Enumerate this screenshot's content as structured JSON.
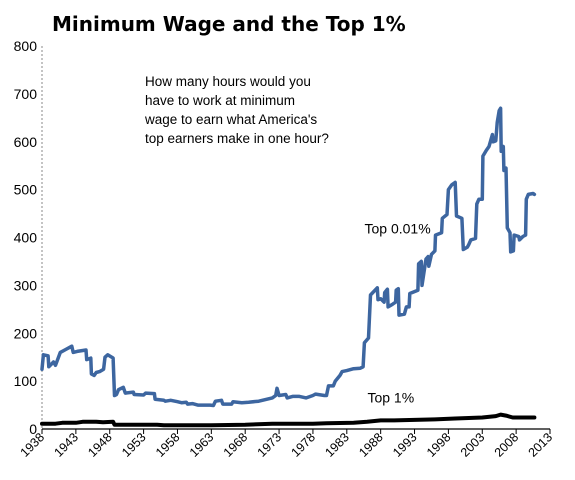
{
  "chart_data": {
    "type": "line",
    "title": "Minimum Wage and the Top 1%",
    "annotation": "How many hours would you have to work at minimum wage to earn what America's top earners make in one hour?",
    "annotation_lines": [
      "How many hours would you",
      "have to work at minimum",
      "wage to earn what America's",
      "top earners make in one hour?"
    ],
    "xlabel": "",
    "ylabel": "",
    "xlim": [
      1938,
      2013
    ],
    "ylim": [
      0,
      800
    ],
    "x_ticks": [
      1938,
      1943,
      1948,
      1953,
      1958,
      1963,
      1968,
      1973,
      1978,
      1983,
      1988,
      1993,
      1998,
      2003,
      2008,
      2013
    ],
    "y_ticks": [
      0,
      100,
      200,
      300,
      400,
      500,
      600,
      700,
      800
    ],
    "grid": false,
    "colors": {
      "top001": "#3d66a0",
      "top1": "#000000"
    },
    "series": [
      {
        "name": "Top 0.01%",
        "color": "#3d66a0",
        "points": [
          [
            1938,
            125
          ],
          [
            1938.2,
            155
          ],
          [
            1938.9,
            153
          ],
          [
            1939,
            130
          ],
          [
            1939.7,
            140
          ],
          [
            1940,
            133
          ],
          [
            1940.7,
            160
          ],
          [
            1941.5,
            166
          ],
          [
            1942.4,
            173
          ],
          [
            1942.6,
            160
          ],
          [
            1943.2,
            162
          ],
          [
            1944.5,
            165
          ],
          [
            1944.6,
            145
          ],
          [
            1945.2,
            148
          ],
          [
            1945.3,
            115
          ],
          [
            1945.7,
            112
          ],
          [
            1946,
            118
          ],
          [
            1946.5,
            120
          ],
          [
            1947.1,
            125
          ],
          [
            1947.3,
            150
          ],
          [
            1947.7,
            155
          ],
          [
            1948.3,
            150
          ],
          [
            1948.5,
            148
          ],
          [
            1948.7,
            70
          ],
          [
            1949,
            72
          ],
          [
            1949.3,
            82
          ],
          [
            1950,
            87
          ],
          [
            1950.3,
            75
          ],
          [
            1951.5,
            77
          ],
          [
            1951.6,
            72
          ],
          [
            1953,
            71
          ],
          [
            1953.3,
            75
          ],
          [
            1954.6,
            74
          ],
          [
            1954.7,
            62
          ],
          [
            1956,
            60
          ],
          [
            1956.2,
            58
          ],
          [
            1957,
            60
          ],
          [
            1958,
            57
          ],
          [
            1958.6,
            55
          ],
          [
            1959.3,
            56
          ],
          [
            1959.5,
            52
          ],
          [
            1960.2,
            53
          ],
          [
            1961,
            50
          ],
          [
            1962.8,
            50
          ],
          [
            1963.3,
            49
          ],
          [
            1963.6,
            58
          ],
          [
            1964.5,
            60
          ],
          [
            1964.7,
            52
          ],
          [
            1966,
            52
          ],
          [
            1966.2,
            57
          ],
          [
            1967.5,
            55
          ],
          [
            1968.5,
            56
          ],
          [
            1970,
            58
          ],
          [
            1972,
            65
          ],
          [
            1972.5,
            70
          ],
          [
            1972.7,
            85
          ],
          [
            1973,
            70
          ],
          [
            1974,
            72
          ],
          [
            1974.2,
            65
          ],
          [
            1975,
            68
          ],
          [
            1976,
            68
          ],
          [
            1977,
            65
          ],
          [
            1978,
            70
          ],
          [
            1978.4,
            73
          ],
          [
            1979.7,
            70
          ],
          [
            1980,
            70
          ],
          [
            1980.3,
            90
          ],
          [
            1981,
            90
          ],
          [
            1981.3,
            100
          ],
          [
            1982,
            112
          ],
          [
            1982.3,
            120
          ],
          [
            1983,
            122
          ],
          [
            1984,
            126
          ],
          [
            1985,
            127
          ],
          [
            1985.4,
            130
          ],
          [
            1985.6,
            180
          ],
          [
            1986.2,
            190
          ],
          [
            1986.5,
            280
          ],
          [
            1987.5,
            295
          ],
          [
            1987.6,
            270
          ],
          [
            1988,
            272
          ],
          [
            1988.5,
            265
          ],
          [
            1988.6,
            285
          ],
          [
            1989,
            292
          ],
          [
            1989.1,
            255
          ],
          [
            1989.7,
            260
          ],
          [
            1990.2,
            265
          ],
          [
            1990.3,
            290
          ],
          [
            1990.6,
            293
          ],
          [
            1990.7,
            238
          ],
          [
            1991.5,
            240
          ],
          [
            1991.8,
            255
          ],
          [
            1992.2,
            255
          ],
          [
            1992.3,
            283
          ],
          [
            1993.5,
            290
          ],
          [
            1993.6,
            345
          ],
          [
            1994,
            350
          ],
          [
            1994.1,
            300
          ],
          [
            1994.7,
            355
          ],
          [
            1995,
            360
          ],
          [
            1995.1,
            340
          ],
          [
            1995.5,
            365
          ],
          [
            1996,
            372
          ],
          [
            1996.1,
            405
          ],
          [
            1997,
            410
          ],
          [
            1997.1,
            440
          ],
          [
            1997.8,
            448
          ],
          [
            1998,
            500
          ],
          [
            1998.5,
            510
          ],
          [
            1999,
            515
          ],
          [
            1999.2,
            445
          ],
          [
            2000,
            440
          ],
          [
            2000.2,
            375
          ],
          [
            2000.8,
            380
          ],
          [
            2001,
            385
          ],
          [
            2001.3,
            395
          ],
          [
            2002,
            398
          ],
          [
            2002.2,
            470
          ],
          [
            2002.5,
            480
          ],
          [
            2003,
            480
          ],
          [
            2003.1,
            570
          ],
          [
            2003.6,
            582
          ],
          [
            2004,
            590
          ],
          [
            2004.5,
            615
          ],
          [
            2004.6,
            600
          ],
          [
            2005,
            602
          ],
          [
            2005.2,
            640
          ],
          [
            2005.5,
            665
          ],
          [
            2005.7,
            670
          ],
          [
            2005.8,
            580
          ],
          [
            2006.1,
            590
          ],
          [
            2006.2,
            540
          ],
          [
            2006.5,
            545
          ],
          [
            2006.7,
            420
          ],
          [
            2007.1,
            410
          ],
          [
            2007.2,
            370
          ],
          [
            2007.6,
            372
          ],
          [
            2007.7,
            405
          ],
          [
            2008.4,
            402
          ],
          [
            2008.5,
            395
          ],
          [
            2009,
            402
          ],
          [
            2009.4,
            405
          ],
          [
            2009.5,
            480
          ],
          [
            2009.8,
            490
          ],
          [
            2010.5,
            492
          ],
          [
            2010.7,
            490
          ]
        ]
      },
      {
        "name": "Top 1%",
        "color": "#000000",
        "points": [
          [
            1938,
            11
          ],
          [
            1940,
            11
          ],
          [
            1941,
            13
          ],
          [
            1943,
            13
          ],
          [
            1944,
            15
          ],
          [
            1946,
            15
          ],
          [
            1947,
            14
          ],
          [
            1948.5,
            15
          ],
          [
            1948.7,
            9
          ],
          [
            1955,
            9
          ],
          [
            1956,
            8
          ],
          [
            1960,
            8
          ],
          [
            1963,
            8
          ],
          [
            1968,
            9
          ],
          [
            1972,
            11
          ],
          [
            1975,
            11
          ],
          [
            1978,
            11
          ],
          [
            1980,
            12
          ],
          [
            1984,
            13
          ],
          [
            1986,
            15
          ],
          [
            1988,
            18
          ],
          [
            1990,
            18
          ],
          [
            1993,
            19
          ],
          [
            1996,
            20
          ],
          [
            1999,
            22
          ],
          [
            2003,
            24
          ],
          [
            2005,
            27
          ],
          [
            2005.7,
            30
          ],
          [
            2006.5,
            28
          ],
          [
            2007.5,
            24
          ],
          [
            2010.7,
            24
          ]
        ]
      }
    ],
    "series_labels": [
      {
        "text": "Top 0.01%",
        "x": 1990.5,
        "y": 408
      },
      {
        "text": "Top 1%",
        "x": 1989.5,
        "y": 55
      }
    ]
  }
}
